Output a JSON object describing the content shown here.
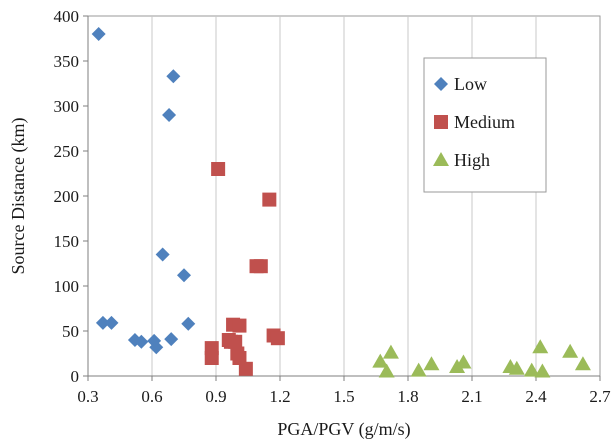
{
  "chart_data": {
    "type": "scatter",
    "xlabel": "PGA/PGV (g/m/s)",
    "ylabel": "Source Distance (km)",
    "xlim": [
      0.3,
      2.7
    ],
    "ylim": [
      0,
      400
    ],
    "xticks": [
      "0.3",
      "0.6",
      "0.9",
      "1.2",
      "1.5",
      "1.8",
      "2.1",
      "2.4",
      "2.7"
    ],
    "yticks": [
      "0",
      "50",
      "100",
      "150",
      "200",
      "250",
      "300",
      "350",
      "400"
    ],
    "grid": "vertical",
    "legend_position": "top-right",
    "series": [
      {
        "name": "Low",
        "marker": "diamond",
        "color": "#4f81bd",
        "points": [
          [
            0.35,
            380
          ],
          [
            0.7,
            333
          ],
          [
            0.68,
            290
          ],
          [
            0.65,
            135
          ],
          [
            0.75,
            112
          ],
          [
            0.37,
            59
          ],
          [
            0.41,
            59
          ],
          [
            0.77,
            58
          ],
          [
            0.52,
            40
          ],
          [
            0.55,
            38
          ],
          [
            0.61,
            39
          ],
          [
            0.69,
            41
          ],
          [
            0.62,
            32
          ]
        ]
      },
      {
        "name": "Medium",
        "marker": "square",
        "color": "#c0504d",
        "points": [
          [
            0.91,
            230
          ],
          [
            1.15,
            196
          ],
          [
            1.11,
            122
          ],
          [
            1.09,
            122
          ],
          [
            0.98,
            57
          ],
          [
            1.01,
            56
          ],
          [
            0.97,
            38
          ],
          [
            0.96,
            40
          ],
          [
            0.99,
            38
          ],
          [
            1.17,
            45
          ],
          [
            1.19,
            42
          ],
          [
            0.88,
            31
          ],
          [
            0.88,
            20
          ],
          [
            1.0,
            25
          ],
          [
            1.01,
            20
          ],
          [
            1.04,
            8
          ]
        ]
      },
      {
        "name": "High",
        "marker": "triangle",
        "color": "#9bbb59",
        "points": [
          [
            1.67,
            16
          ],
          [
            1.7,
            5
          ],
          [
            1.72,
            26
          ],
          [
            1.85,
            6
          ],
          [
            1.91,
            13
          ],
          [
            2.03,
            10
          ],
          [
            2.06,
            15
          ],
          [
            2.28,
            10
          ],
          [
            2.31,
            8
          ],
          [
            2.38,
            6
          ],
          [
            2.42,
            32
          ],
          [
            2.43,
            5
          ],
          [
            2.56,
            27
          ],
          [
            2.62,
            13
          ]
        ]
      }
    ]
  }
}
